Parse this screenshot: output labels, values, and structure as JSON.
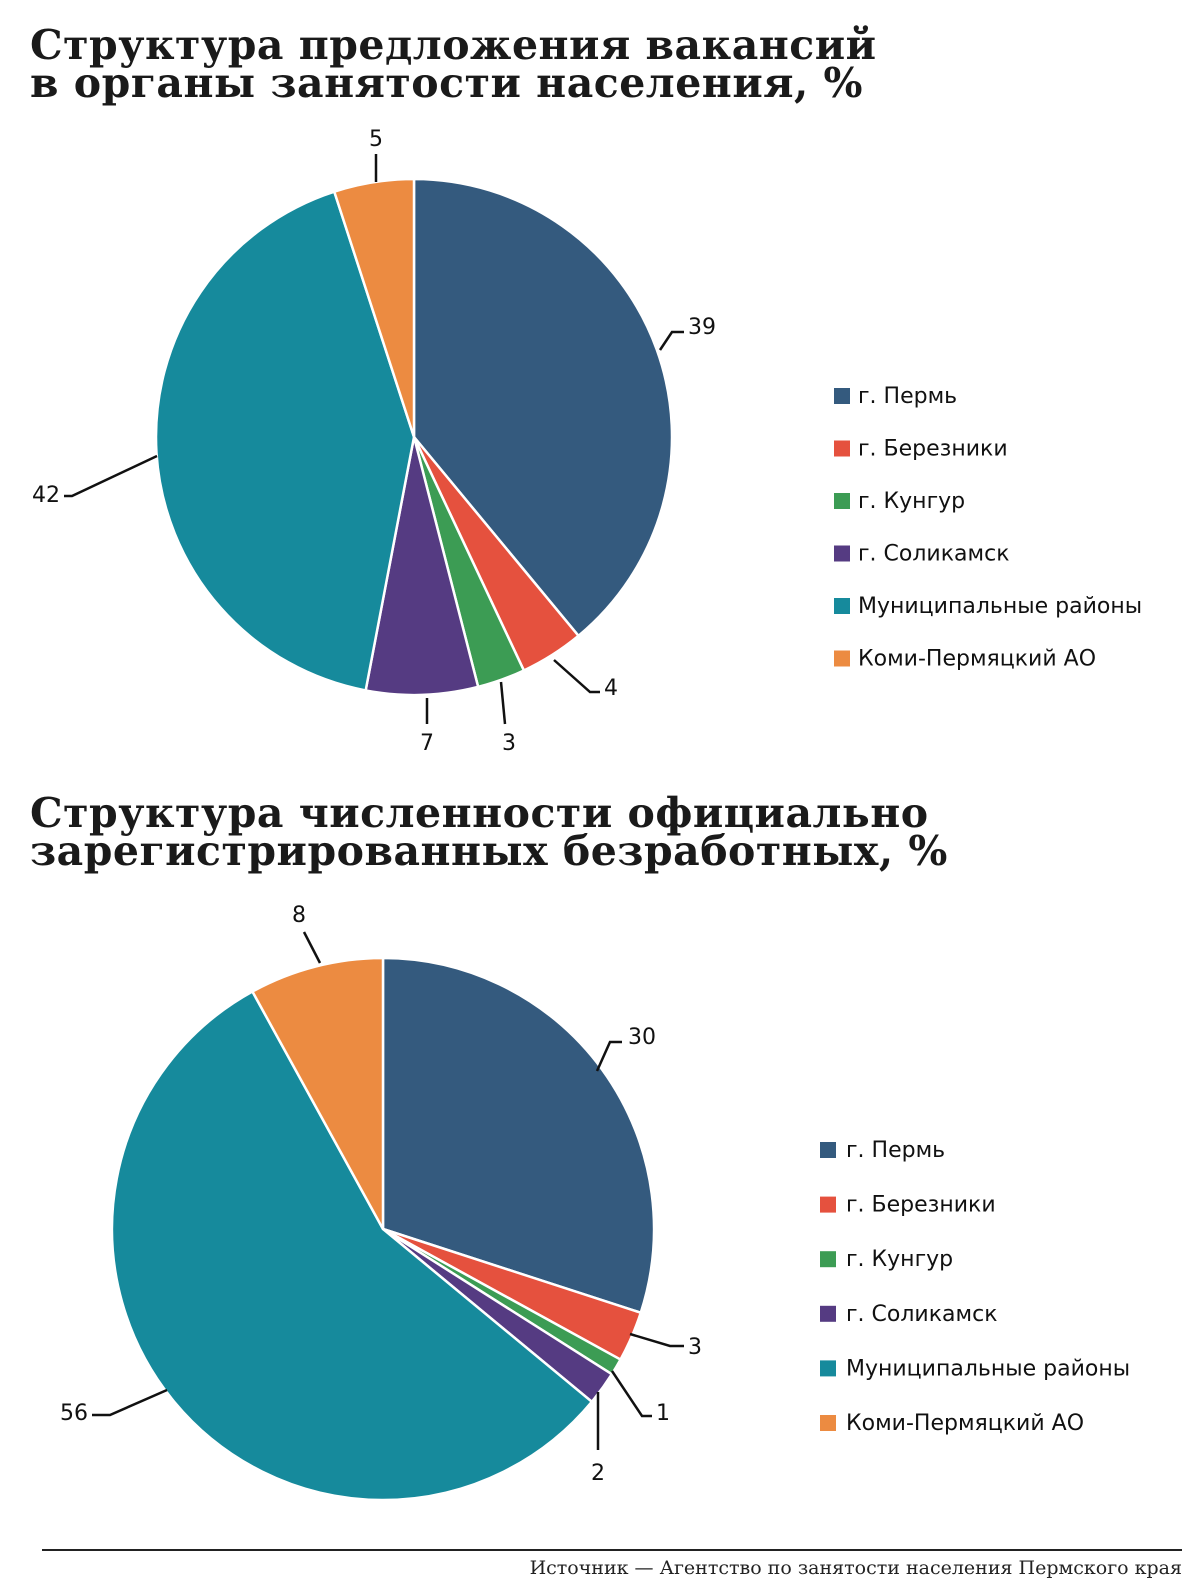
{
  "chart_data": [
    {
      "type": "pie",
      "title_lines": [
        "Структура предложения вакансий",
        "в органы занятости населения, %"
      ],
      "legend_position": "right",
      "slices": [
        {
          "label": "г. Пермь",
          "value": 39,
          "color": "#345a7e"
        },
        {
          "label": "г. Березники",
          "value": 4,
          "color": "#e5513e"
        },
        {
          "label": "г. Кунгур",
          "value": 3,
          "color": "#3c9c54"
        },
        {
          "label": "г. Соликамск",
          "value": 7,
          "color": "#553b82"
        },
        {
          "label": "Муниципальные районы",
          "value": 42,
          "color": "#168a9c"
        },
        {
          "label": "Коми-Пермяцкий АО",
          "value": 5,
          "color": "#ec8b41"
        }
      ]
    },
    {
      "type": "pie",
      "title_lines": [
        "Структура численности официально",
        "зарегистрированных безработных, %"
      ],
      "legend_position": "right",
      "slices": [
        {
          "label": "г. Пермь",
          "value": 30,
          "color": "#345a7e"
        },
        {
          "label": "г. Березники",
          "value": 3,
          "color": "#e5513e"
        },
        {
          "label": "г. Кунгур",
          "value": 1,
          "color": "#3c9c54"
        },
        {
          "label": "г. Соликамск",
          "value": 2,
          "color": "#553b82"
        },
        {
          "label": "Муниципальные районы",
          "value": 56,
          "color": "#168a9c"
        },
        {
          "label": "Коми-Пермяцкий АО",
          "value": 8,
          "color": "#ec8b41"
        }
      ]
    }
  ],
  "source": "Источник — Агентство по занятости населения Пермского края"
}
